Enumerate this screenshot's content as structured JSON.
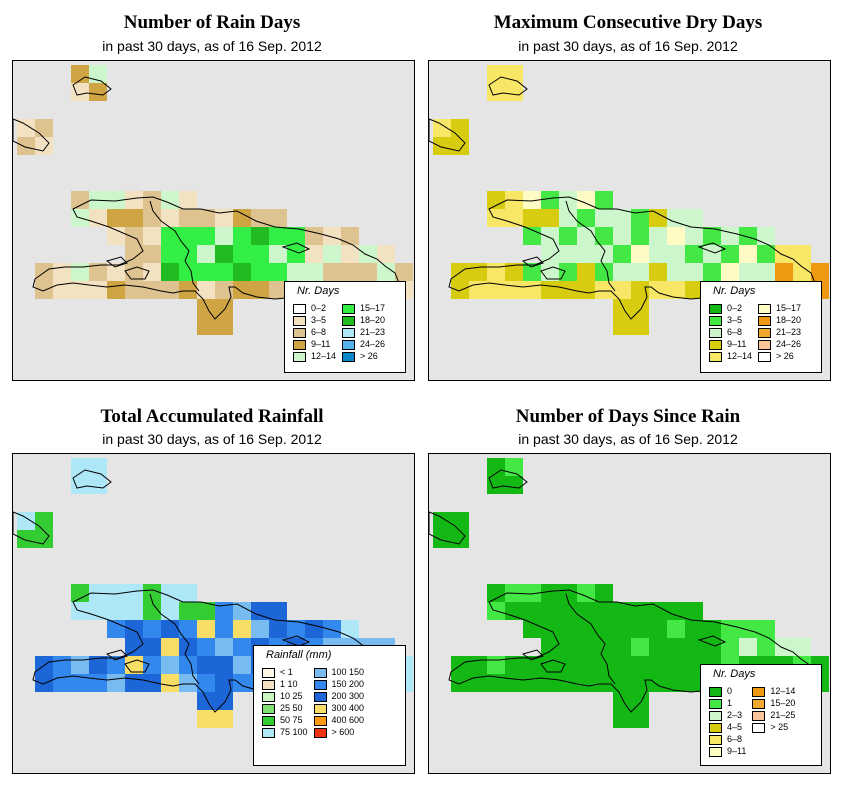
{
  "panels": [
    {
      "id": "rain_days",
      "title": "Number of Rain Days",
      "subtitle": "in past 30 days, as of  16 Sep. 2012",
      "legend": {
        "title": "Nr. Days",
        "rows": 5,
        "items": [
          {
            "label": "0–2",
            "color": "#ffffff"
          },
          {
            "label": "3–5",
            "color": "#f3e2c2"
          },
          {
            "label": "6–8",
            "color": "#dec28f"
          },
          {
            "label": "9–11",
            "color": "#cfa544"
          },
          {
            "label": "12–14",
            "color": "#ccf7cc"
          },
          {
            "label": "15–17",
            "color": "#33ee44"
          },
          {
            "label": "18–20",
            "color": "#22bb22"
          },
          {
            "label": "21–23",
            "color": "#aee8f8"
          },
          {
            "label": "24–26",
            "color": "#55b3ea"
          },
          {
            "label": "> 26",
            "color": "#0a87c8"
          }
        ]
      }
    },
    {
      "id": "dry_days",
      "title": "Maximum Consecutive Dry Days",
      "subtitle": "in past 30 days, as of  16 Sep. 2012",
      "legend": {
        "title": "Nr. Days",
        "rows": 5,
        "items": [
          {
            "label": "0–2",
            "color": "#14b814"
          },
          {
            "label": "3–5",
            "color": "#44e844"
          },
          {
            "label": "6–8",
            "color": "#ccf7cc"
          },
          {
            "label": "9–11",
            "color": "#d8cc11"
          },
          {
            "label": "12–14",
            "color": "#f8e666"
          },
          {
            "label": "15–17",
            "color": "#fefcc4"
          },
          {
            "label": "18–20",
            "color": "#ee9911"
          },
          {
            "label": "21–23",
            "color": "#f0a830"
          },
          {
            "label": "24–26",
            "color": "#f8c49a"
          },
          {
            "label": "> 26",
            "color": "#ffffff"
          }
        ]
      }
    },
    {
      "id": "rainfall",
      "title": "Total Accumulated Rainfall",
      "subtitle": "in past 30 days, as of  16 Sep. 2012",
      "legend": {
        "title": "Rainfall (mm)",
        "rows": 8,
        "items": [
          {
            "label": "< 1",
            "color": "#fef6e6"
          },
          {
            "label": "1    10",
            "color": "#f3e2c2"
          },
          {
            "label": "10    25",
            "color": "#c9f6c0"
          },
          {
            "label": "25    50",
            "color": "#80e070"
          },
          {
            "label": "50    75",
            "color": "#33cc33"
          },
          {
            "label": "75   100",
            "color": "#aee8f8"
          },
          {
            "label": "",
            "color": "#ffffff"
          },
          {
            "label": "",
            "color": "#ffffff"
          },
          {
            "label": "100   150",
            "color": "#77bbf0"
          },
          {
            "label": "150   200",
            "color": "#3388ee"
          },
          {
            "label": "200   300",
            "color": "#1c66d8"
          },
          {
            "label": "300   400",
            "color": "#f8dd66"
          },
          {
            "label": "400   600",
            "color": "#ff9911"
          },
          {
            "label": "> 600",
            "color": "#ee3311"
          }
        ]
      }
    },
    {
      "id": "days_since_rain",
      "title": "Number of Days Since Rain",
      "subtitle": "in past 30 days, as of  16 Sep. 2012",
      "legend": {
        "title": "Nr. Days",
        "rows": 6,
        "items": [
          {
            "label": "0",
            "color": "#14b814"
          },
          {
            "label": "1",
            "color": "#44e844"
          },
          {
            "label": "2–3",
            "color": "#ccf7cc"
          },
          {
            "label": "4–5",
            "color": "#d8cc11"
          },
          {
            "label": "6–8",
            "color": "#f8e666"
          },
          {
            "label": "9–11",
            "color": "#fefcc4"
          },
          {
            "label": "12–14",
            "color": "#ee9911"
          },
          {
            "label": "15–20",
            "color": "#f0a830"
          },
          {
            "label": "21–25",
            "color": "#f8c49a"
          },
          {
            "label": "> 25",
            "color": "#ffffff"
          }
        ]
      }
    }
  ],
  "colors": {
    "panel_background": "#e5e5e5",
    "coastline": "#000000"
  }
}
